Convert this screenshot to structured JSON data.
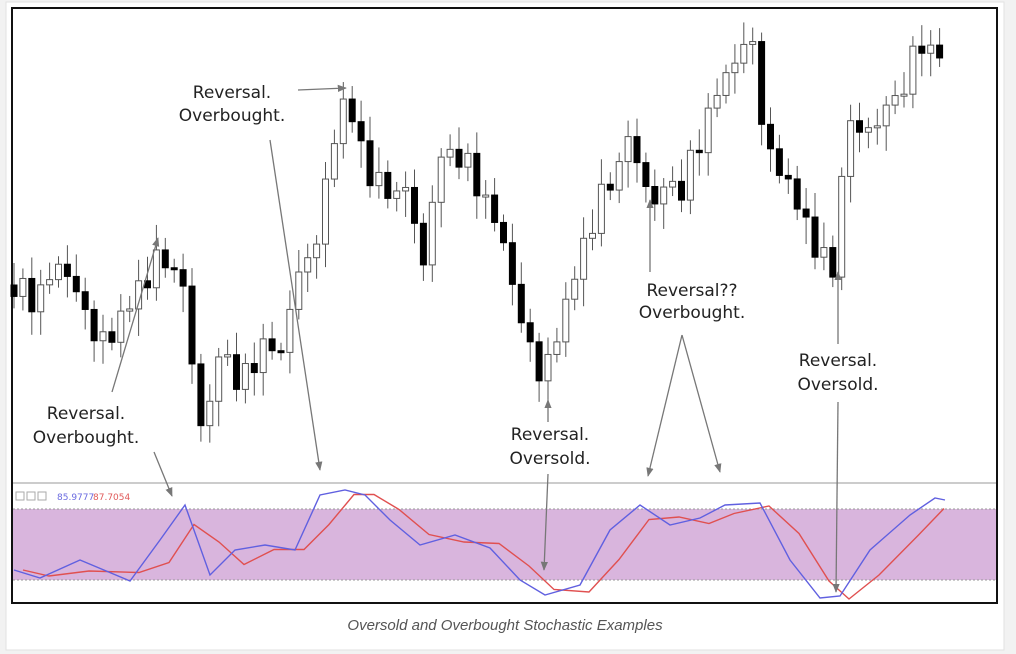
{
  "figure": {
    "annotations": [
      {
        "lines": [
          "Reversal.",
          "Overbought."
        ]
      },
      {
        "lines": [
          "Reversal.",
          "Overbought."
        ]
      },
      {
        "lines": [
          "Reversal.",
          "Oversold."
        ]
      },
      {
        "lines": [
          "Reversal??",
          "Overbought."
        ]
      },
      {
        "lines": [
          "Reversal.",
          "Oversold."
        ]
      }
    ],
    "indicator_values": [
      "85.9777",
      "87.7054"
    ],
    "caption": "Oversold and Overbought Stochastic Examples"
  }
}
